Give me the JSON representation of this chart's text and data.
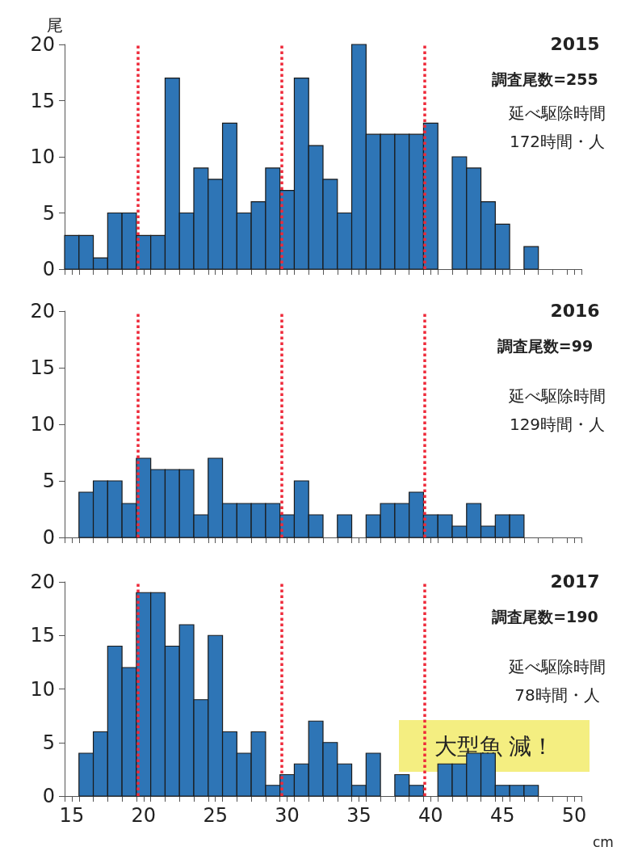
{
  "chart_data": [
    {
      "type": "histogram",
      "title": "2015",
      "subtitle": "調査尾数=255",
      "ylabel": "尾",
      "annotations": [
        "延べ駆除時間",
        "172時間・人"
      ],
      "color": "#2e75b6",
      "bins": [
        14.5,
        15.5,
        16.5,
        17.5,
        18.5,
        19.5,
        20.5,
        21.5,
        22.5,
        23.5,
        24.5,
        25.5,
        26.5,
        27.5,
        28.5,
        29.5,
        30.5,
        31.5,
        32.5,
        33.5,
        34.5,
        35.5,
        36.5,
        37.5,
        38.5,
        39.5,
        40.5,
        41.5,
        42.5,
        43.5,
        44.5,
        45.5,
        46.5,
        47.5,
        48.5,
        49.5,
        50.5
      ],
      "values": [
        3,
        3,
        1,
        5,
        5,
        3,
        3,
        17,
        5,
        9,
        8,
        13,
        5,
        6,
        9,
        7,
        17,
        11,
        8,
        5,
        20,
        12,
        12,
        12,
        12,
        13,
        0,
        10,
        9,
        6,
        4,
        0,
        2,
        0,
        0,
        0
      ],
      "xlim": [
        14.5,
        50.5
      ],
      "xticks": [
        15,
        20,
        25,
        30,
        35,
        40,
        45,
        50,
        {
          "value": 14.5,
          "label": null
        },
        {
          "value": 15.5,
          "label": null
        },
        {
          "value": 16.5,
          "label": null
        },
        {
          "value": 17.5,
          "label": null
        },
        {
          "value": 18.5,
          "label": null
        },
        {
          "value": 19.5,
          "label": null
        },
        {
          "value": 20.5,
          "label": null
        },
        {
          "value": 21.5,
          "label": null
        },
        {
          "value": 22.5,
          "label": null
        },
        {
          "value": 23.5,
          "label": null
        },
        {
          "value": 24.5,
          "label": null
        },
        {
          "value": 25.5,
          "label": null
        },
        {
          "value": 26.5,
          "label": null
        },
        {
          "value": 27.5,
          "label": null
        },
        {
          "value": 28.5,
          "label": null
        },
        {
          "value": 29.5,
          "label": null
        },
        {
          "value": 30.5,
          "label": null
        },
        {
          "value": 31.5,
          "label": null
        },
        {
          "value": 32.5,
          "label": null
        },
        {
          "value": 33.5,
          "label": null
        },
        {
          "value": 34.5,
          "label": null
        },
        {
          "value": 35.5,
          "label": null
        },
        {
          "value": 36.5,
          "label": null
        },
        {
          "value": 37.5,
          "label": null
        },
        {
          "value": 38.5,
          "label": null
        },
        {
          "value": 39.5,
          "label": null
        },
        {
          "value": 40.5,
          "label": null
        },
        {
          "value": 41.5,
          "label": null
        },
        {
          "value": 42.5,
          "label": null
        },
        {
          "value": 43.5,
          "label": null
        },
        {
          "value": 44.5,
          "label": null
        },
        {
          "value": 45.5,
          "label": null
        },
        {
          "value": 46.5,
          "label": null
        },
        {
          "value": 47.5,
          "label": null
        },
        {
          "value": 48.5,
          "label": null
        },
        {
          "value": 49.5,
          "label": null
        },
        {
          "value": 50.5,
          "label": null
        }
      ],
      "ylim": [
        0,
        20
      ],
      "yticks": [
        0,
        5,
        10,
        15,
        20
      ],
      "tick_labels": "y",
      "ref_lines": [
        {
          "axis": "x",
          "value": 19.6,
          "color": "#ee2a3a",
          "line_style": "dotted"
        },
        {
          "axis": "x",
          "value": 29.6,
          "color": "#ee2a3a",
          "line_style": "dotted"
        },
        {
          "axis": "x",
          "value": 39.6,
          "color": "#ee2a3a",
          "line_style": "dotted"
        }
      ]
    },
    {
      "type": "histogram",
      "title": "2016",
      "subtitle": "調査尾数=99",
      "annotations": [
        "延べ駆除時間",
        "129時間・人"
      ],
      "color": "#2e75b6",
      "bins": [
        14.5,
        15.5,
        16.5,
        17.5,
        18.5,
        19.5,
        20.5,
        21.5,
        22.5,
        23.5,
        24.5,
        25.5,
        26.5,
        27.5,
        28.5,
        29.5,
        30.5,
        31.5,
        32.5,
        33.5,
        34.5,
        35.5,
        36.5,
        37.5,
        38.5,
        39.5,
        40.5,
        41.5,
        42.5,
        43.5,
        44.5,
        45.5,
        46.5,
        47.5,
        48.5,
        49.5,
        50.5
      ],
      "values": [
        0,
        4,
        5,
        5,
        3,
        7,
        6,
        6,
        6,
        2,
        7,
        3,
        3,
        3,
        3,
        2,
        5,
        2,
        0,
        2,
        0,
        2,
        3,
        3,
        4,
        2,
        2,
        1,
        3,
        1,
        2,
        2,
        0,
        0,
        0,
        0
      ],
      "xlim": [
        14.5,
        50.5
      ],
      "xticks": [
        15,
        20,
        25,
        30,
        35,
        40,
        45,
        50,
        {
          "value": 14.5,
          "label": null
        },
        {
          "value": 15.5,
          "label": null
        },
        {
          "value": 16.5,
          "label": null
        },
        {
          "value": 17.5,
          "label": null
        },
        {
          "value": 18.5,
          "label": null
        },
        {
          "value": 19.5,
          "label": null
        },
        {
          "value": 20.5,
          "label": null
        },
        {
          "value": 21.5,
          "label": null
        },
        {
          "value": 22.5,
          "label": null
        },
        {
          "value": 23.5,
          "label": null
        },
        {
          "value": 24.5,
          "label": null
        },
        {
          "value": 25.5,
          "label": null
        },
        {
          "value": 26.5,
          "label": null
        },
        {
          "value": 27.5,
          "label": null
        },
        {
          "value": 28.5,
          "label": null
        },
        {
          "value": 29.5,
          "label": null
        },
        {
          "value": 30.5,
          "label": null
        },
        {
          "value": 31.5,
          "label": null
        },
        {
          "value": 32.5,
          "label": null
        },
        {
          "value": 33.5,
          "label": null
        },
        {
          "value": 34.5,
          "label": null
        },
        {
          "value": 35.5,
          "label": null
        },
        {
          "value": 36.5,
          "label": null
        },
        {
          "value": 37.5,
          "label": null
        },
        {
          "value": 38.5,
          "label": null
        },
        {
          "value": 39.5,
          "label": null
        },
        {
          "value": 40.5,
          "label": null
        },
        {
          "value": 41.5,
          "label": null
        },
        {
          "value": 42.5,
          "label": null
        },
        {
          "value": 43.5,
          "label": null
        },
        {
          "value": 44.5,
          "label": null
        },
        {
          "value": 45.5,
          "label": null
        },
        {
          "value": 46.5,
          "label": null
        },
        {
          "value": 47.5,
          "label": null
        },
        {
          "value": 48.5,
          "label": null
        },
        {
          "value": 49.5,
          "label": null
        },
        {
          "value": 50.5,
          "label": null
        }
      ],
      "ylim": [
        0,
        20
      ],
      "yticks": [
        0,
        5,
        10,
        15,
        20
      ],
      "tick_labels": "y",
      "ref_lines": [
        {
          "axis": "x",
          "value": 19.6,
          "color": "#ee2a3a",
          "line_style": "dotted"
        },
        {
          "axis": "x",
          "value": 29.6,
          "color": "#ee2a3a",
          "line_style": "dotted"
        },
        {
          "axis": "x",
          "value": 39.6,
          "color": "#ee2a3a",
          "line_style": "dotted"
        }
      ]
    },
    {
      "type": "histogram",
      "title": "2017",
      "subtitle": "調査尾数=190",
      "xlabel": "cm",
      "annotations": [
        "延べ駆除時間",
        "78時間・人",
        "大型魚 減！"
      ],
      "color": "#2e75b6",
      "bins": [
        14.5,
        15.5,
        16.5,
        17.5,
        18.5,
        19.5,
        20.5,
        21.5,
        22.5,
        23.5,
        24.5,
        25.5,
        26.5,
        27.5,
        28.5,
        29.5,
        30.5,
        31.5,
        32.5,
        33.5,
        34.5,
        35.5,
        36.5,
        37.5,
        38.5,
        39.5,
        40.5,
        41.5,
        42.5,
        43.5,
        44.5,
        45.5,
        46.5,
        47.5,
        48.5,
        49.5,
        50.5
      ],
      "values": [
        0,
        4,
        6,
        14,
        12,
        19,
        19,
        14,
        16,
        9,
        15,
        6,
        4,
        6,
        1,
        2,
        3,
        7,
        5,
        3,
        1,
        4,
        0,
        2,
        1,
        0,
        3,
        3,
        4,
        4,
        1,
        1,
        1,
        0,
        0,
        0
      ],
      "xlim": [
        14.5,
        50.5
      ],
      "xticks": [
        15,
        20,
        25,
        30,
        35,
        40,
        45,
        50,
        {
          "value": 14.5,
          "label": null
        },
        {
          "value": 15.5,
          "label": null
        },
        {
          "value": 16.5,
          "label": null
        },
        {
          "value": 17.5,
          "label": null
        },
        {
          "value": 18.5,
          "label": null
        },
        {
          "value": 19.5,
          "label": null
        },
        {
          "value": 20.5,
          "label": null
        },
        {
          "value": 21.5,
          "label": null
        },
        {
          "value": 22.5,
          "label": null
        },
        {
          "value": 23.5,
          "label": null
        },
        {
          "value": 24.5,
          "label": null
        },
        {
          "value": 25.5,
          "label": null
        },
        {
          "value": 26.5,
          "label": null
        },
        {
          "value": 27.5,
          "label": null
        },
        {
          "value": 28.5,
          "label": null
        },
        {
          "value": 29.5,
          "label": null
        },
        {
          "value": 30.5,
          "label": null
        },
        {
          "value": 31.5,
          "label": null
        },
        {
          "value": 32.5,
          "label": null
        },
        {
          "value": 33.5,
          "label": null
        },
        {
          "value": 34.5,
          "label": null
        },
        {
          "value": 35.5,
          "label": null
        },
        {
          "value": 36.5,
          "label": null
        },
        {
          "value": 37.5,
          "label": null
        },
        {
          "value": 38.5,
          "label": null
        },
        {
          "value": 39.5,
          "label": null
        },
        {
          "value": 40.5,
          "label": null
        },
        {
          "value": 41.5,
          "label": null
        },
        {
          "value": 42.5,
          "label": null
        },
        {
          "value": 43.5,
          "label": null
        },
        {
          "value": 44.5,
          "label": null
        },
        {
          "value": 45.5,
          "label": null
        },
        {
          "value": 46.5,
          "label": null
        },
        {
          "value": 47.5,
          "label": null
        },
        {
          "value": 48.5,
          "label": null
        },
        {
          "value": 49.5,
          "label": null
        },
        {
          "value": 50.5,
          "label": null
        }
      ],
      "ylim": [
        0,
        20
      ],
      "yticks": [
        0,
        5,
        10,
        15,
        20
      ],
      "ref_lines": [
        {
          "axis": "x",
          "value": 19.6,
          "color": "#ee2a3a",
          "line_style": "dotted"
        },
        {
          "axis": "x",
          "value": 29.6,
          "color": "#ee2a3a",
          "line_style": "dotted"
        },
        {
          "axis": "x",
          "value": 39.6,
          "color": "#ee2a3a",
          "line_style": "dotted"
        }
      ]
    }
  ]
}
